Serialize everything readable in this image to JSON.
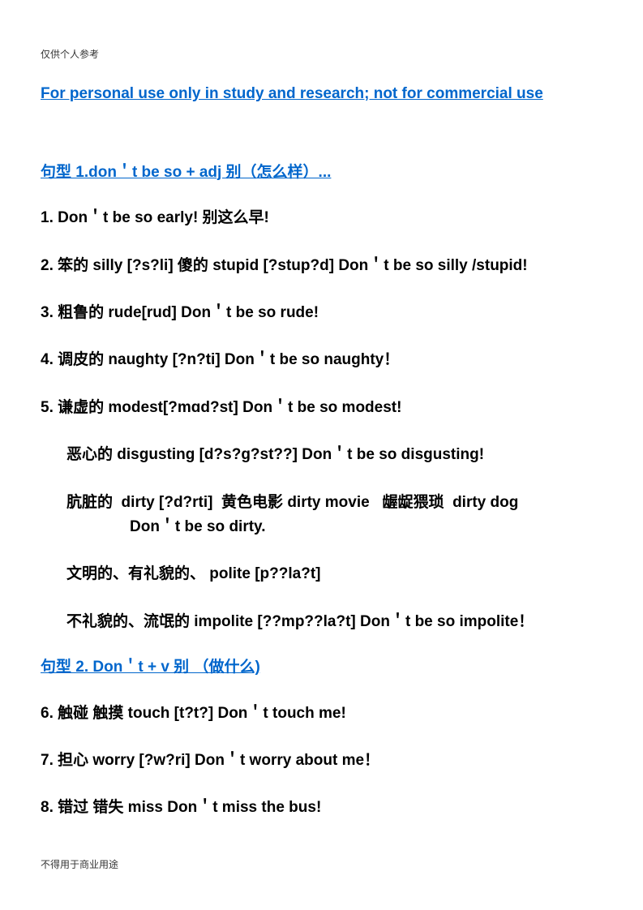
{
  "header_note": "仅供个人参考",
  "title": "For personal use only in study and research; not for commercial use",
  "section1": {
    "heading": "句型 1.don＇t be so + adj 别（怎么样）...",
    "items": [
      "1.  Don＇t be so early!  别这么早!",
      "2.   笨的 silly [?s?li]   傻的 stupid [?stup?d]   Don＇t be so silly /stupid!",
      "3.  粗鲁的 rude[rud]   Don＇t be so rude!",
      "4.  调皮的 naughty [?n?ti]   Don＇t be so naughty！",
      "5.  谦虚的 modest[?mɑd?st] Don＇t be so modest!"
    ],
    "subitems": [
      "恶心的 disgusting [d?s?g?st??]    Don＇t be so disgusting!",
      "肮脏的  dirty [?d?rti]  黄色电影 dirty movie   龌龊猥琐 dirty dog Don＇t be so dirty.",
      "文明的、有礼貌的、  polite   [p??la?t]",
      "不礼貌的、流氓的   impolite [??mp??la?t]   Don＇t be so impolite！"
    ]
  },
  "section2": {
    "heading": "句型 2. Don＇t + v   别 （做什么)",
    "items": [
      "6.  触碰 触摸 touch [t?t?]   Don＇t touch me!",
      "7.  担心 worry   [?w?ri] Don＇t worry about me！",
      "8.  错过 错失 miss    Don＇t miss the bus!"
    ]
  },
  "footer_note": "不得用于商业用途"
}
